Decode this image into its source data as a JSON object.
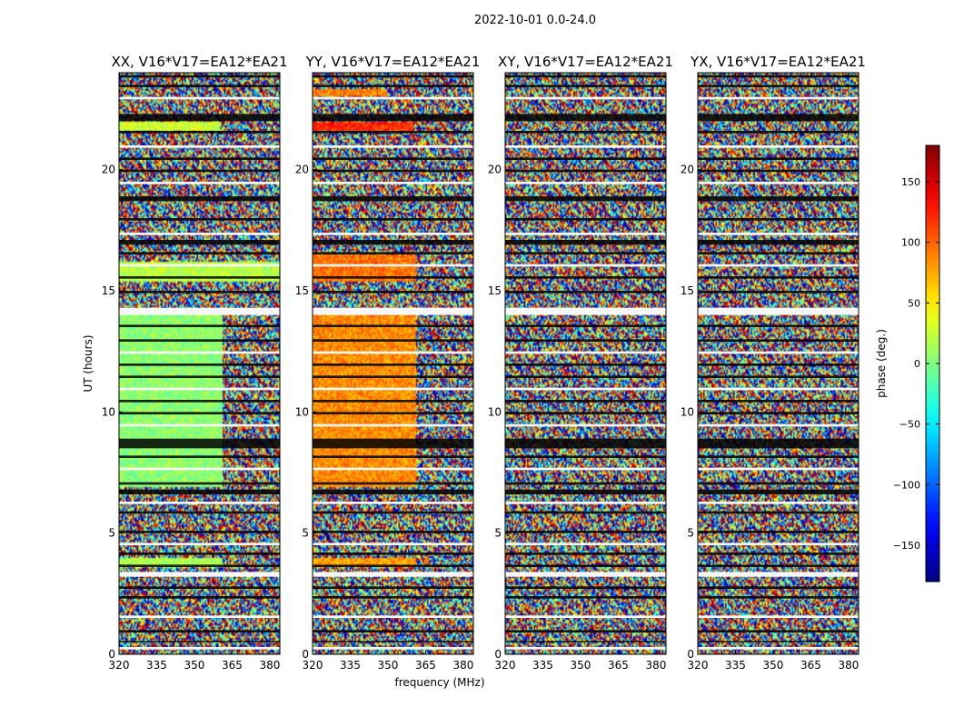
{
  "figure": {
    "suptitle": "2022-10-01 0.0-24.0",
    "xlabel": "frequency (MHz)",
    "ylabel": "UT (hours)",
    "colorbar_label": "phase (deg.)"
  },
  "chart_data": {
    "type": "heatmap",
    "panels": [
      {
        "title": "XX, V16*V17=EA12*EA21",
        "pattern": "xx"
      },
      {
        "title": "YY, V16*V17=EA12*EA21",
        "pattern": "yy"
      },
      {
        "title": "XY, V16*V17=EA12*EA21",
        "pattern": "noise"
      },
      {
        "title": "YX, V16*V17=EA12*EA21",
        "pattern": "noise"
      }
    ],
    "x_ticks": [
      "320",
      "335",
      "350",
      "365",
      "380"
    ],
    "x_tick_values": [
      320,
      335,
      350,
      365,
      380
    ],
    "xlim": [
      320,
      384
    ],
    "y_ticks": [
      "0",
      "5",
      "10",
      "15",
      "20"
    ],
    "y_tick_values": [
      0,
      5,
      10,
      15,
      20
    ],
    "ylim": [
      0,
      24
    ],
    "colorbar": {
      "colormap": "jet",
      "range": [
        -180,
        180
      ],
      "ticks": [
        "−150",
        "−100",
        "−50",
        "0",
        "50",
        "100",
        "150"
      ],
      "tick_values": [
        -150,
        -100,
        -50,
        0,
        50,
        100,
        150
      ]
    },
    "flagged_bands_ut": [
      [
        0.2,
        0.3
      ],
      [
        0.5,
        0.55
      ],
      [
        0.9,
        1.0
      ],
      [
        1.5,
        1.6
      ],
      [
        2.3,
        2.4
      ],
      [
        2.7,
        2.8
      ],
      [
        3.2,
        3.4
      ],
      [
        3.6,
        3.7
      ],
      [
        4.1,
        4.2
      ],
      [
        4.5,
        4.6
      ],
      [
        5.0,
        5.1
      ],
      [
        5.8,
        5.9
      ],
      [
        6.2,
        6.3
      ],
      [
        6.6,
        6.8
      ],
      [
        7.0,
        7.1
      ],
      [
        7.6,
        7.7
      ],
      [
        8.1,
        8.2
      ],
      [
        8.5,
        8.9
      ],
      [
        9.4,
        9.5
      ],
      [
        9.9,
        10.0
      ],
      [
        10.4,
        10.5
      ],
      [
        10.9,
        11.0
      ],
      [
        11.4,
        11.5
      ],
      [
        11.9,
        12.0
      ],
      [
        12.4,
        12.5
      ],
      [
        12.9,
        13.0
      ],
      [
        13.5,
        13.6
      ],
      [
        14.0,
        14.3
      ],
      [
        14.9,
        15.0
      ],
      [
        15.5,
        15.6
      ],
      [
        16.0,
        16.1
      ],
      [
        16.5,
        16.6
      ],
      [
        16.9,
        17.1
      ],
      [
        17.3,
        17.4
      ],
      [
        17.9,
        18.0
      ],
      [
        18.7,
        18.9
      ],
      [
        19.4,
        19.5
      ],
      [
        19.9,
        20.0
      ],
      [
        20.4,
        20.5
      ],
      [
        20.9,
        21.0
      ],
      [
        21.5,
        21.6
      ],
      [
        22.0,
        22.3
      ],
      [
        22.9,
        23.0
      ],
      [
        23.4,
        23.5
      ],
      [
        23.8,
        23.9
      ]
    ],
    "coherent_segments": [
      {
        "panel": "xx",
        "ut_start": 6.9,
        "ut_end": 14.0,
        "freq_start": 320,
        "freq_end": 361,
        "phase_deg": 5
      },
      {
        "panel": "xx",
        "ut_start": 15.4,
        "ut_end": 16.2,
        "freq_start": 320,
        "freq_end": 384,
        "phase_deg": 20
      },
      {
        "panel": "xx",
        "ut_start": 3.6,
        "ut_end": 4.0,
        "freq_start": 320,
        "freq_end": 361,
        "phase_deg": 15
      },
      {
        "panel": "xx",
        "ut_start": 21.6,
        "ut_end": 22.0,
        "freq_start": 320,
        "freq_end": 360,
        "phase_deg": 30
      },
      {
        "panel": "yy",
        "ut_start": 6.9,
        "ut_end": 14.0,
        "freq_start": 320,
        "freq_end": 361,
        "phase_deg": 85
      },
      {
        "panel": "yy",
        "ut_start": 15.4,
        "ut_end": 16.5,
        "freq_start": 320,
        "freq_end": 361,
        "phase_deg": 95
      },
      {
        "panel": "yy",
        "ut_start": 3.6,
        "ut_end": 4.0,
        "freq_start": 320,
        "freq_end": 361,
        "phase_deg": 80
      },
      {
        "panel": "yy",
        "ut_start": 21.6,
        "ut_end": 22.0,
        "freq_start": 320,
        "freq_end": 360,
        "phase_deg": 120
      },
      {
        "panel": "yy",
        "ut_start": 23.0,
        "ut_end": 23.3,
        "freq_start": 320,
        "freq_end": 350,
        "phase_deg": 90
      }
    ]
  }
}
